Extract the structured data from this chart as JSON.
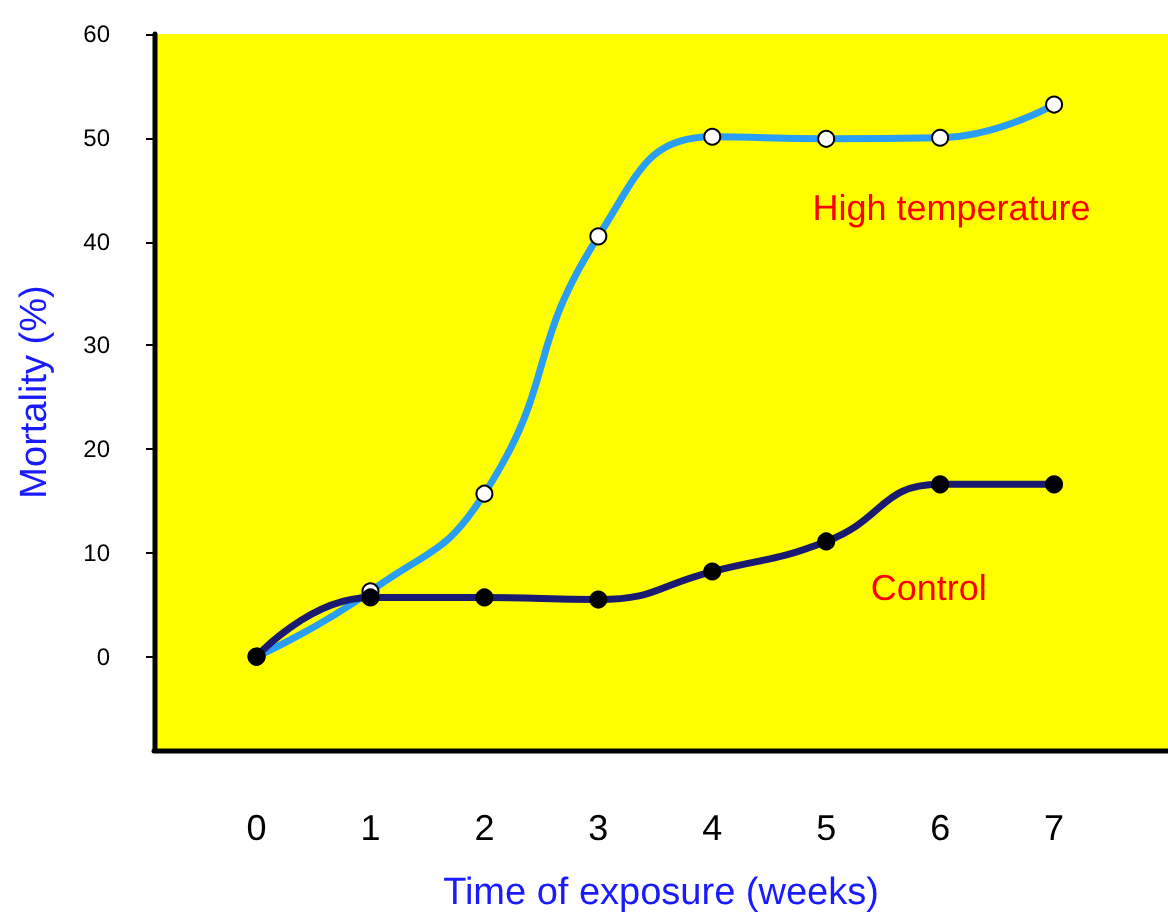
{
  "chart_data": {
    "type": "line",
    "xlabel": "Time of exposure (weeks)",
    "ylabel": "Mortality (%)",
    "x": [
      0,
      1,
      2,
      3,
      4,
      5,
      6,
      7
    ],
    "series": [
      {
        "name": "High temperature",
        "color": "#2a9df4",
        "values": [
          0,
          6.3,
          15.7,
          40.5,
          50.1,
          49.9,
          50,
          53.2
        ]
      },
      {
        "name": "Control",
        "color": "#1a1a70",
        "values": [
          0,
          5.7,
          5.7,
          5.5,
          8.2,
          11.1,
          16.6,
          16.6
        ]
      }
    ],
    "xlim": [
      -0.9,
      8
    ],
    "xticks": [
      0,
      1,
      2,
      3,
      4,
      5,
      6,
      7
    ],
    "ylim": [
      -9,
      60
    ],
    "yticks": [
      0,
      10,
      20,
      30,
      40,
      50,
      60
    ],
    "grid": false,
    "legend": false,
    "marker": "circle",
    "line_style": "solid"
  }
}
